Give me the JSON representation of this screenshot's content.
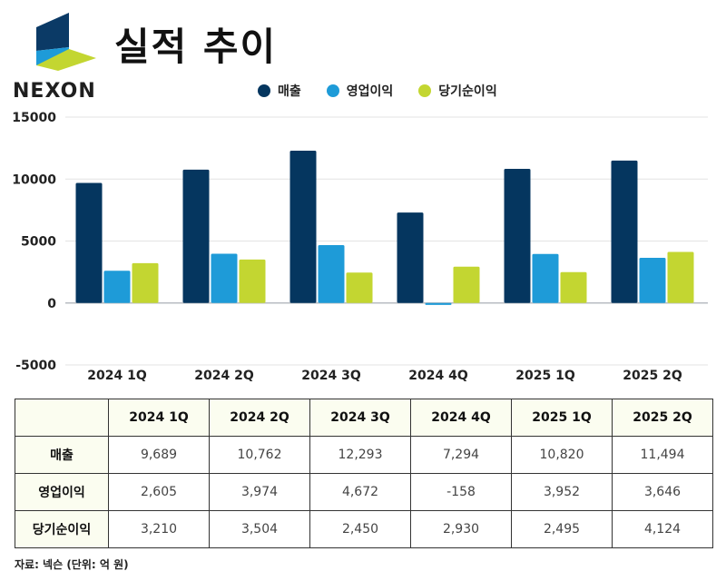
{
  "header": {
    "brand": "NEXON",
    "title": "실적 추이"
  },
  "colors": {
    "revenue": "#05365f",
    "operating_profit": "#1e9bd8",
    "net_income": "#c3d631",
    "logo_dark": "#0b3a66",
    "logo_blue": "#1e9bd8",
    "logo_lime": "#c3d631"
  },
  "chart_data": {
    "type": "bar",
    "title": "실적 추이",
    "xlabel": "",
    "ylabel": "",
    "categories": [
      "2024 1Q",
      "2024 2Q",
      "2024 3Q",
      "2024 4Q",
      "2025 1Q",
      "2025 2Q"
    ],
    "series": [
      {
        "name": "매출",
        "color": "#05365f",
        "values": [
          9689,
          10762,
          12293,
          7294,
          10820,
          11494
        ]
      },
      {
        "name": "영업이익",
        "color": "#1e9bd8",
        "values": [
          2605,
          3974,
          4672,
          -158,
          3952,
          3646
        ]
      },
      {
        "name": "당기순이익",
        "color": "#c3d631",
        "values": [
          3210,
          3504,
          2450,
          2930,
          2495,
          4124
        ]
      }
    ],
    "ylim": [
      -5000,
      15000
    ],
    "yticks": [
      "15000",
      "10000",
      "5000",
      "0",
      "-5000"
    ],
    "ytick_values": [
      15000,
      10000,
      5000,
      0,
      -5000
    ],
    "grid": true,
    "legend": "top-center"
  },
  "table": {
    "corner": "",
    "columns": [
      "2024 1Q",
      "2024 2Q",
      "2024 3Q",
      "2024 4Q",
      "2025 1Q",
      "2025 2Q"
    ],
    "rows": [
      {
        "label": "매출",
        "values": [
          "9,689",
          "10,762",
          "12,293",
          "7,294",
          "10,820",
          "11,494"
        ]
      },
      {
        "label": "영업이익",
        "values": [
          "2,605",
          "3,974",
          "4,672",
          "-158",
          "3,952",
          "3,646"
        ]
      },
      {
        "label": "당기순이익",
        "values": [
          "3,210",
          "3,504",
          "2,450",
          "2,930",
          "2,495",
          "4,124"
        ]
      }
    ]
  },
  "source": "자료: 넥슨 (단위: 억 원)"
}
